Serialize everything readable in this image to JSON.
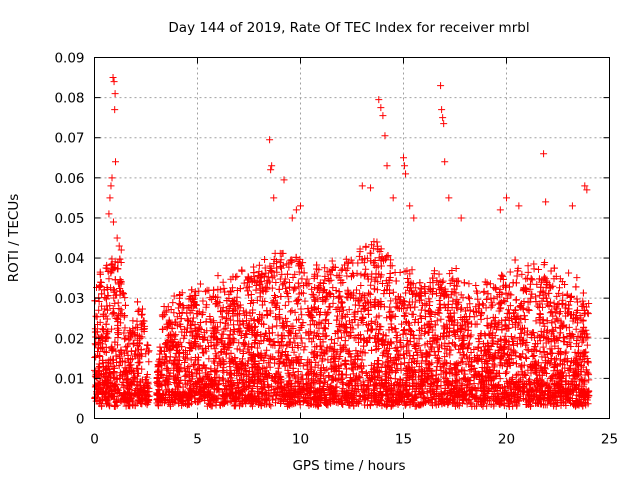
{
  "chart_data": {
    "type": "scatter",
    "title": "Day 144 of 2019, Rate Of TEC Index for receiver mrbl",
    "xlabel": "GPS time / hours",
    "ylabel": "ROTI / TECUs",
    "xlim": [
      0,
      25
    ],
    "ylim": [
      0,
      0.09
    ],
    "x_ticks": [
      "0",
      "5",
      "10",
      "15",
      "20",
      "25"
    ],
    "y_ticks": [
      "0",
      "0.01",
      "0.02",
      "0.03",
      "0.04",
      "0.05",
      "0.06",
      "0.07",
      "0.08",
      "0.09"
    ],
    "grid": true,
    "marker": "plus",
    "color": "#ff0000",
    "series": [
      {
        "x": [
          0.9,
          0.95,
          1.0,
          0.98,
          1.02,
          0.85,
          0.8,
          0.75,
          0.7,
          0.92,
          1.1,
          1.2,
          1.3,
          8.5,
          8.6,
          8.55,
          8.7,
          9.2,
          9.6,
          9.8,
          10.0,
          13.0,
          13.4,
          13.8,
          13.9,
          14.0,
          14.1,
          14.2,
          14.5,
          15.0,
          15.05,
          15.1,
          15.3,
          15.5,
          16.8,
          16.85,
          16.9,
          16.95,
          17.0,
          17.2,
          17.8,
          19.7,
          20.0,
          20.6,
          21.8,
          21.9,
          23.2,
          23.8,
          23.9
        ],
        "y": [
          0.085,
          0.084,
          0.081,
          0.077,
          0.064,
          0.06,
          0.058,
          0.055,
          0.051,
          0.049,
          0.045,
          0.043,
          0.042,
          0.0695,
          0.063,
          0.062,
          0.055,
          0.0595,
          0.05,
          0.052,
          0.053,
          0.058,
          0.0575,
          0.0795,
          0.0775,
          0.0755,
          0.0705,
          0.063,
          0.055,
          0.065,
          0.063,
          0.061,
          0.053,
          0.05,
          0.083,
          0.077,
          0.075,
          0.0735,
          0.064,
          0.055,
          0.05,
          0.052,
          0.055,
          0.053,
          0.066,
          0.054,
          0.053,
          0.058,
          0.057
        ]
      }
    ]
  }
}
